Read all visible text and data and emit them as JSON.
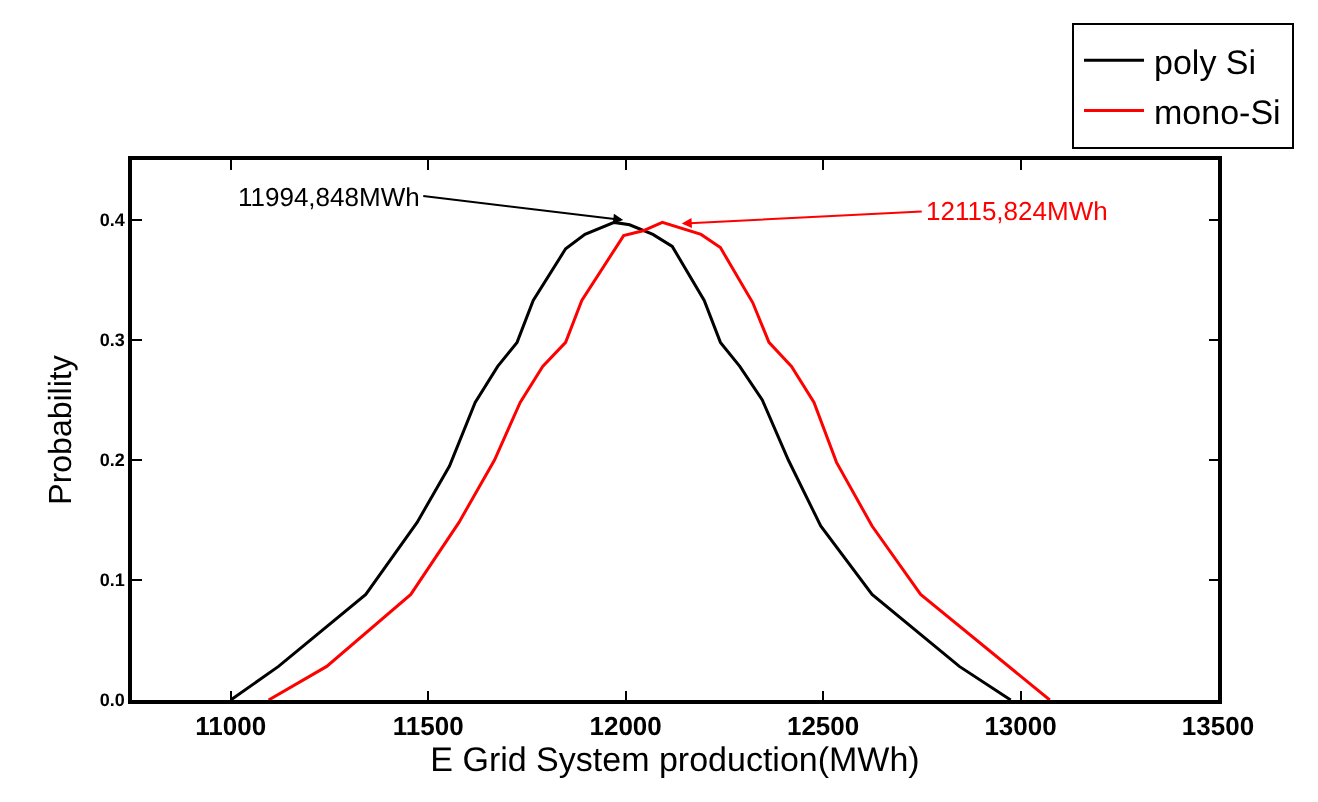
{
  "chart_data": {
    "type": "line",
    "xlabel": "E Grid System production(MWh)",
    "ylabel": "Probability",
    "xlim": [
      10750,
      13500
    ],
    "xticks": [
      11000,
      11500,
      12000,
      12500,
      13000,
      13500
    ],
    "ylim": [
      0,
      0.45
    ],
    "yticks": [
      {
        "value": 0,
        "label": "0.0"
      },
      0.1,
      0.2,
      0.3,
      0.4
    ],
    "grid": false,
    "legend": "top right",
    "marker": "none",
    "line_style": "solid",
    "series": [
      {
        "name": "poly Si",
        "color": "#000000",
        "x": [
          11000,
          11121,
          11342,
          11472,
          11554,
          11619,
          11676,
          11725,
          11766,
          11848,
          11897,
          11971,
          12010,
          12069,
          12118,
          12199,
          12240,
          12289,
          12346,
          12412,
          12494,
          12624,
          12845,
          12975
        ],
        "values": [
          0,
          0.028,
          0.088,
          0.148,
          0.195,
          0.248,
          0.278,
          0.298,
          0.333,
          0.376,
          0.388,
          0.398,
          0.396,
          0.388,
          0.378,
          0.333,
          0.298,
          0.278,
          0.25,
          0.2,
          0.145,
          0.088,
          0.028,
          0
        ]
      },
      {
        "name": "mono-Si",
        "color": "#ff0000",
        "x": [
          11096,
          11243,
          11456,
          11578,
          11668,
          11733,
          11790,
          11848,
          11889,
          11995,
          12044,
          12093,
          12191,
          12240,
          12322,
          12363,
          12420,
          12477,
          12534,
          12624,
          12747,
          13074
        ],
        "values": [
          0,
          0.028,
          0.088,
          0.148,
          0.2,
          0.248,
          0.278,
          0.298,
          0.333,
          0.387,
          0.391,
          0.398,
          0.388,
          0.377,
          0.331,
          0.298,
          0.278,
          0.248,
          0.198,
          0.145,
          0.088,
          0
        ]
      }
    ],
    "annotations": [
      {
        "text": "11994,848MWh",
        "x": 11994,
        "y": 0.4
      },
      {
        "text": "12115,824MWh",
        "x": 12142,
        "y": 0.397
      }
    ]
  }
}
